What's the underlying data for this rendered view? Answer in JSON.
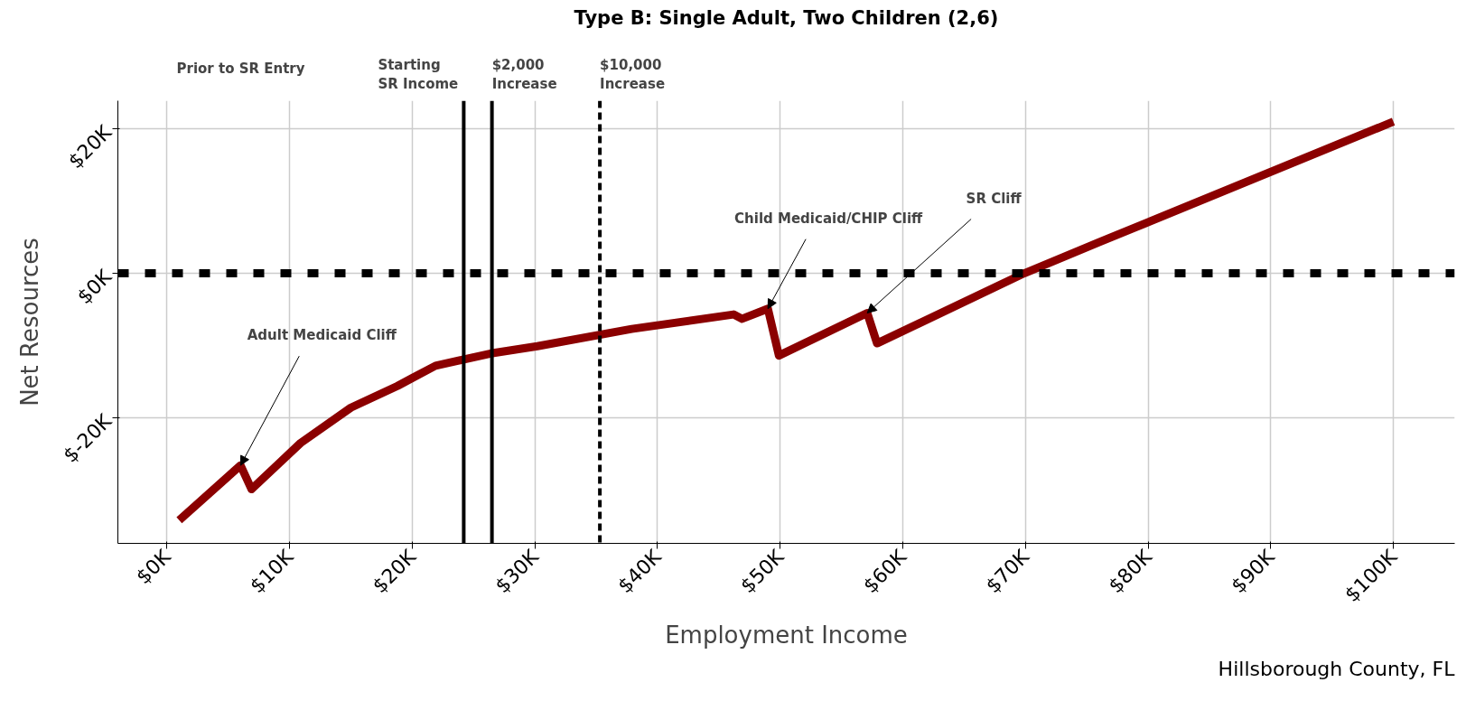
{
  "chart_data": {
    "type": "line",
    "title": "Type B: Single Adult, Two Children (2,6)",
    "xlabel": "Employment Income",
    "ylabel": "Net Resources",
    "x": [
      1.0,
      6.0,
      6.9,
      10.9,
      15.0,
      18.8,
      20.0,
      21.9,
      26.4,
      30.2,
      37.9,
      46.2,
      46.9,
      49.0,
      49.9,
      57.1,
      57.9,
      69.9,
      76.0,
      100.0
    ],
    "series": [
      {
        "color": "#8b0000",
        "values": [
          -34.2,
          -26.6,
          -29.9,
          -23.5,
          -18.6,
          -15.6,
          -14.5,
          -12.8,
          -11.1,
          -10.1,
          -7.7,
          -5.7,
          -6.3,
          -4.9,
          -11.4,
          -5.5,
          -9.7,
          0.0,
          4.3,
          21.0
        ]
      }
    ],
    "xlim": [
      -4,
      105
    ],
    "ylim": [
      -37.4,
      23.9
    ],
    "xticks": [
      {
        "value": 0,
        "label": "$0K"
      },
      {
        "value": 10,
        "label": "$10K"
      },
      {
        "value": 20,
        "label": "$20K"
      },
      {
        "value": 30,
        "label": "$30K"
      },
      {
        "value": 40,
        "label": "$40K"
      },
      {
        "value": 50,
        "label": "$50K"
      },
      {
        "value": 60,
        "label": "$60K"
      },
      {
        "value": 70,
        "label": "$70K"
      },
      {
        "value": 80,
        "label": "$80K"
      },
      {
        "value": 90,
        "label": "$90K"
      },
      {
        "value": 100,
        "label": "$100K"
      }
    ],
    "yticks": [
      {
        "value": -20,
        "label": "$-20K"
      },
      {
        "value": 0,
        "label": "$0K"
      },
      {
        "value": 20,
        "label": "$20K"
      }
    ],
    "grid": true,
    "marker": "none",
    "line_style": "solid",
    "ref_lines": [
      {
        "axis": "y",
        "value": 0,
        "label": null,
        "color": "#000000",
        "line_style": "dashed"
      },
      {
        "axis": "x",
        "value": 24.2,
        "label": "Starting\nSR Income",
        "color": "#000000",
        "line_style": "solid"
      },
      {
        "axis": "x",
        "value": 26.5,
        "label": "$2,000\nIncrease",
        "color": "#000000",
        "line_style": "solid"
      },
      {
        "axis": "x",
        "value": 35.3,
        "label": "$10,000\nIncrease",
        "color": "#000000",
        "line_style": "dashed"
      }
    ],
    "annotations": [
      "Prior to SR Entry",
      {
        "text": "Adult Medicaid Cliff",
        "x": 6.0,
        "y": -26.6
      },
      {
        "text": "Child Medicaid/CHIP Cliff",
        "x": 49.0,
        "y": -4.9
      },
      {
        "text": "SR Cliff",
        "x": 57.1,
        "y": -5.5
      },
      "Hillsborough County, FL"
    ]
  }
}
